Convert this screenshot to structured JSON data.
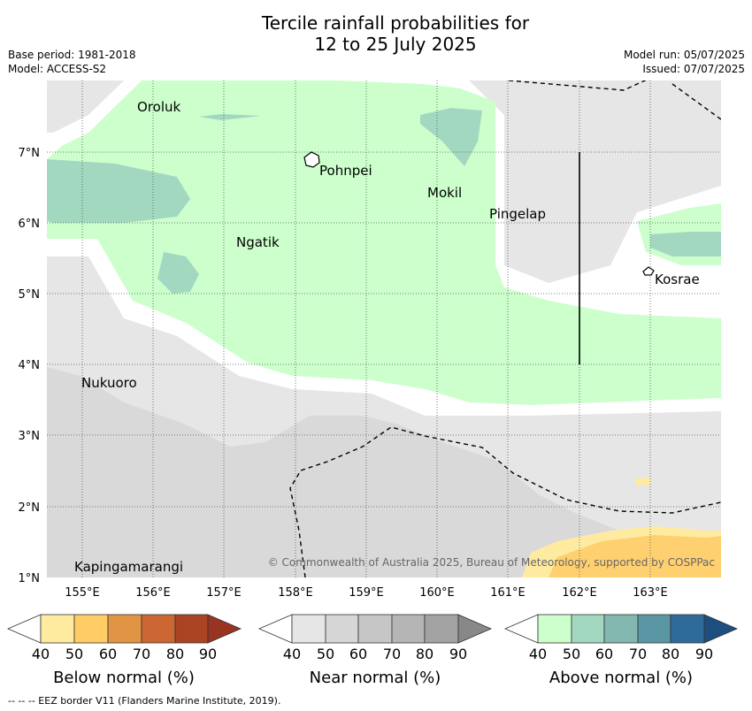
{
  "header": {
    "title_line1": "Tercile rainfall probabilities for",
    "title_line2": "12 to 25 July 2025",
    "base_period": "Base period: 1981-2018",
    "model": "Model: ACCESS-S2",
    "model_run": "Model run: 05/07/2025",
    "issued": "Issued: 07/07/2025"
  },
  "map": {
    "lon_labels": [
      "155°E",
      "156°E",
      "157°E",
      "158°E",
      "159°E",
      "160°E",
      "161°E",
      "162°E",
      "163°E"
    ],
    "lat_labels": [
      "7°N",
      "6°N",
      "5°N",
      "4°N",
      "3°N",
      "2°N",
      "1°N"
    ],
    "islands": [
      "Oroluk",
      "Pohnpei",
      "Mokil",
      "Pingelap",
      "Ngatik",
      "Kosrae",
      "Nukuoro",
      "Kapingamarangi"
    ],
    "copyright": "© Commonwealth of Australia 2025, Bureau of Meteorology, supported by COSPPac",
    "colors": {
      "above_40": "#ccffcc",
      "above_50": "#a2d8c0",
      "near_40": "#e6e6e6",
      "near_50": "#d9d9d9",
      "below_40": "#ffeba0",
      "below_50": "#ffd070",
      "grid": "#555555",
      "eez": "#000000"
    }
  },
  "legends": [
    {
      "name": "below",
      "title": "Below normal (%)",
      "ticks": [
        "40",
        "50",
        "60",
        "70",
        "80",
        "90"
      ],
      "colors": [
        "#ffeba0",
        "#ffcc66",
        "#e09444",
        "#cc6633",
        "#aa4422",
        "#993322"
      ]
    },
    {
      "name": "near",
      "title": "Near normal (%)",
      "ticks": [
        "40",
        "50",
        "60",
        "70",
        "80",
        "90"
      ],
      "colors": [
        "#e6e6e6",
        "#d6d6d6",
        "#c6c6c6",
        "#b5b5b5",
        "#a3a3a3",
        "#888888"
      ]
    },
    {
      "name": "above",
      "title": "Above normal (%)",
      "ticks": [
        "40",
        "50",
        "60",
        "70",
        "80",
        "90"
      ],
      "colors": [
        "#ccffcc",
        "#a2d8c0",
        "#82b8b0",
        "#5a96a4",
        "#2f6b9a",
        "#1e4e80"
      ]
    }
  ],
  "footer": {
    "eez_note": "-- -- -- EEZ border V11 (Flanders Marine Institute, 2019)."
  }
}
